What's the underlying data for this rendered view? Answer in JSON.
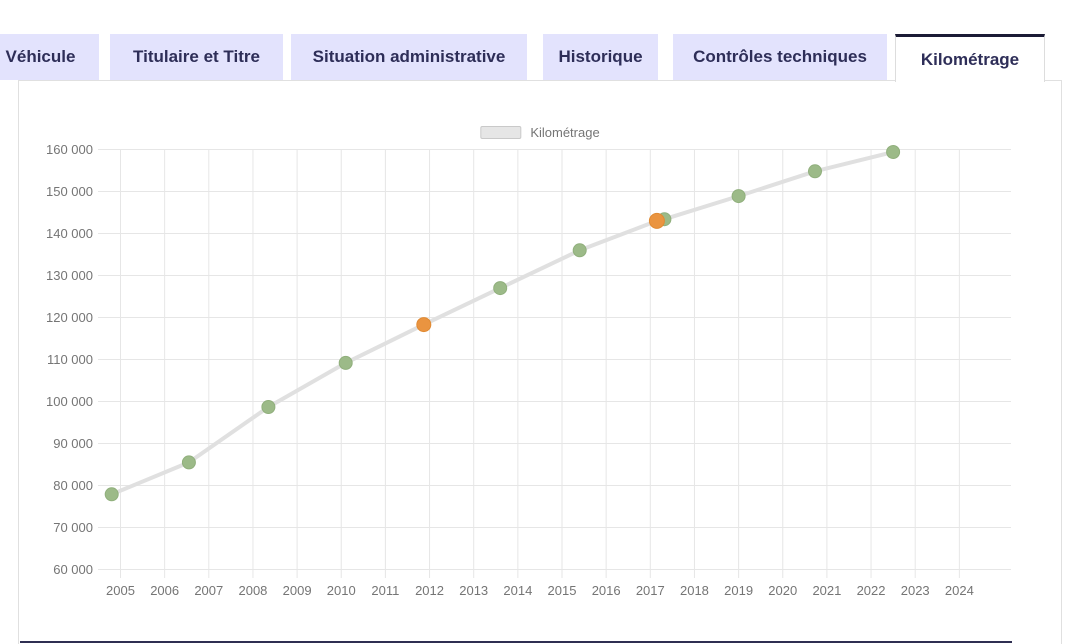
{
  "tabs": {
    "items": [
      {
        "label": "Véhicule",
        "active": false
      },
      {
        "label": "Titulaire et Titre",
        "active": false
      },
      {
        "label": "Situation administrative",
        "active": false
      },
      {
        "label": "Historique",
        "active": false
      },
      {
        "label": "Contrôles techniques",
        "active": false
      },
      {
        "label": "Kilométrage",
        "active": true
      }
    ]
  },
  "colors": {
    "tab_background": "#e3e3fd",
    "tab_text": "#2e2e58",
    "active_tab_top_border": "#1b1b35",
    "panel_border": "#e0e0e0",
    "gridline": "#e6e6e6",
    "axis_text": "#757575",
    "line": "#e0e0e0",
    "point_green": "#9cba88",
    "point_green_stroke": "#90af7c",
    "point_orange": "#ea9440",
    "point_orange_stroke": "#e08a33",
    "footer_divider": "#2f2f52"
  },
  "chart_data": {
    "type": "line",
    "title": "",
    "legend_label": "Kilométrage",
    "legend_position": "top-center",
    "grid": true,
    "xlabel": "",
    "ylabel": "",
    "xlim": [
      2004.5,
      2025.2
    ],
    "ylim": [
      60000,
      160000
    ],
    "x_tick_values": [
      2005,
      2006,
      2007,
      2008,
      2009,
      2010,
      2011,
      2012,
      2013,
      2014,
      2015,
      2016,
      2017,
      2018,
      2019,
      2020,
      2021,
      2022,
      2023,
      2024
    ],
    "y_tick_values": [
      60000,
      70000,
      80000,
      90000,
      100000,
      110000,
      120000,
      130000,
      140000,
      150000,
      160000
    ],
    "y_tick_labels": [
      "60 000",
      "70 000",
      "80 000",
      "90 000",
      "100 000",
      "110 000",
      "120 000",
      "130 000",
      "140 000",
      "150 000",
      "160 000"
    ],
    "series": [
      {
        "name": "Kilométrage",
        "line_color": "#e0e0e0",
        "points": [
          {
            "year": 2004.8,
            "km": 77900,
            "color_key": "green",
            "r": 6.5
          },
          {
            "year": 2006.55,
            "km": 85500,
            "color_key": "green",
            "r": 6.5
          },
          {
            "year": 2008.35,
            "km": 98700,
            "color_key": "green",
            "r": 6.5
          },
          {
            "year": 2010.1,
            "km": 109200,
            "color_key": "green",
            "r": 6.5
          },
          {
            "year": 2011.87,
            "km": 118300,
            "color_key": "orange",
            "r": 7.0
          },
          {
            "year": 2013.6,
            "km": 127000,
            "color_key": "green",
            "r": 6.5
          },
          {
            "year": 2015.4,
            "km": 136000,
            "color_key": "green",
            "r": 6.5
          },
          {
            "year": 2017.15,
            "km": 143000,
            "color_key": "orange",
            "r": 7.5
          },
          {
            "year": 2017.32,
            "km": 143400,
            "color_key": "green",
            "r": 6.5
          },
          {
            "year": 2019.0,
            "km": 148900,
            "color_key": "green",
            "r": 6.5
          },
          {
            "year": 2020.73,
            "km": 154800,
            "color_key": "green",
            "r": 6.5
          },
          {
            "year": 2022.5,
            "km": 159400,
            "color_key": "green",
            "r": 6.5
          }
        ]
      }
    ]
  }
}
